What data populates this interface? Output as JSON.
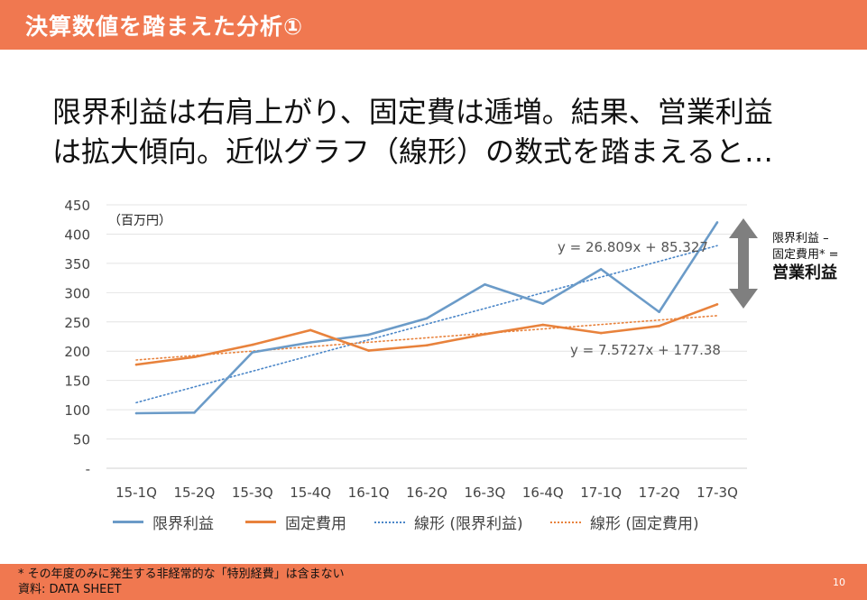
{
  "header": {
    "title": "決算数値を踏まえた分析①"
  },
  "headline": {
    "line1": "限界利益は右肩上がり、固定費は逓増。結果、営業利益",
    "line2": "は拡大傾向。近似グラフ（線形）の数式を踏まえると…"
  },
  "chart_data": {
    "type": "line",
    "unit_label": "（百万円）",
    "categories": [
      "15-1Q",
      "15-2Q",
      "15-3Q",
      "15-4Q",
      "16-1Q",
      "16-2Q",
      "16-3Q",
      "16-4Q",
      "17-1Q",
      "17-2Q",
      "17-3Q"
    ],
    "ylim": [
      0,
      450
    ],
    "yticks": [
      0,
      50,
      100,
      150,
      200,
      250,
      300,
      350,
      400,
      450
    ],
    "ytick_labels": [
      "-",
      "50",
      "100",
      "150",
      "200",
      "250",
      "300",
      "350",
      "400",
      "450"
    ],
    "grid": true,
    "series": [
      {
        "name": "限界利益",
        "color": "#6b9bc8",
        "style": "solid",
        "values": [
          94,
          95,
          198,
          215,
          228,
          256,
          314,
          281,
          340,
          267,
          420
        ]
      },
      {
        "name": "固定費用",
        "color": "#e8823c",
        "style": "solid",
        "values": [
          177,
          190,
          211,
          236,
          201,
          210,
          229,
          245,
          231,
          243,
          280
        ]
      }
    ],
    "trendlines": [
      {
        "name": "線形 (限界利益)",
        "color": "#4a86c8",
        "style": "dotted",
        "slope": 26.809,
        "intercept": 85.327,
        "equation": "y = 26.809x + 85.327"
      },
      {
        "name": "線形 (固定費用)",
        "color": "#e8823c",
        "style": "dotted",
        "slope": 7.5727,
        "intercept": 177.38,
        "equation": "y = 7.5727x + 177.38"
      }
    ],
    "legend_position": "bottom"
  },
  "side_note": {
    "line1": "限界利益 –",
    "line2": "固定費用* =",
    "line3": "営業利益"
  },
  "footer": {
    "note1": "* その年度のみに発生する非経常的な「特別経費」は含まない",
    "note2": "資料: DATA SHEET",
    "page_number": "10"
  },
  "colors": {
    "accent": "#f07850",
    "arrow": "#7f7f7f"
  }
}
